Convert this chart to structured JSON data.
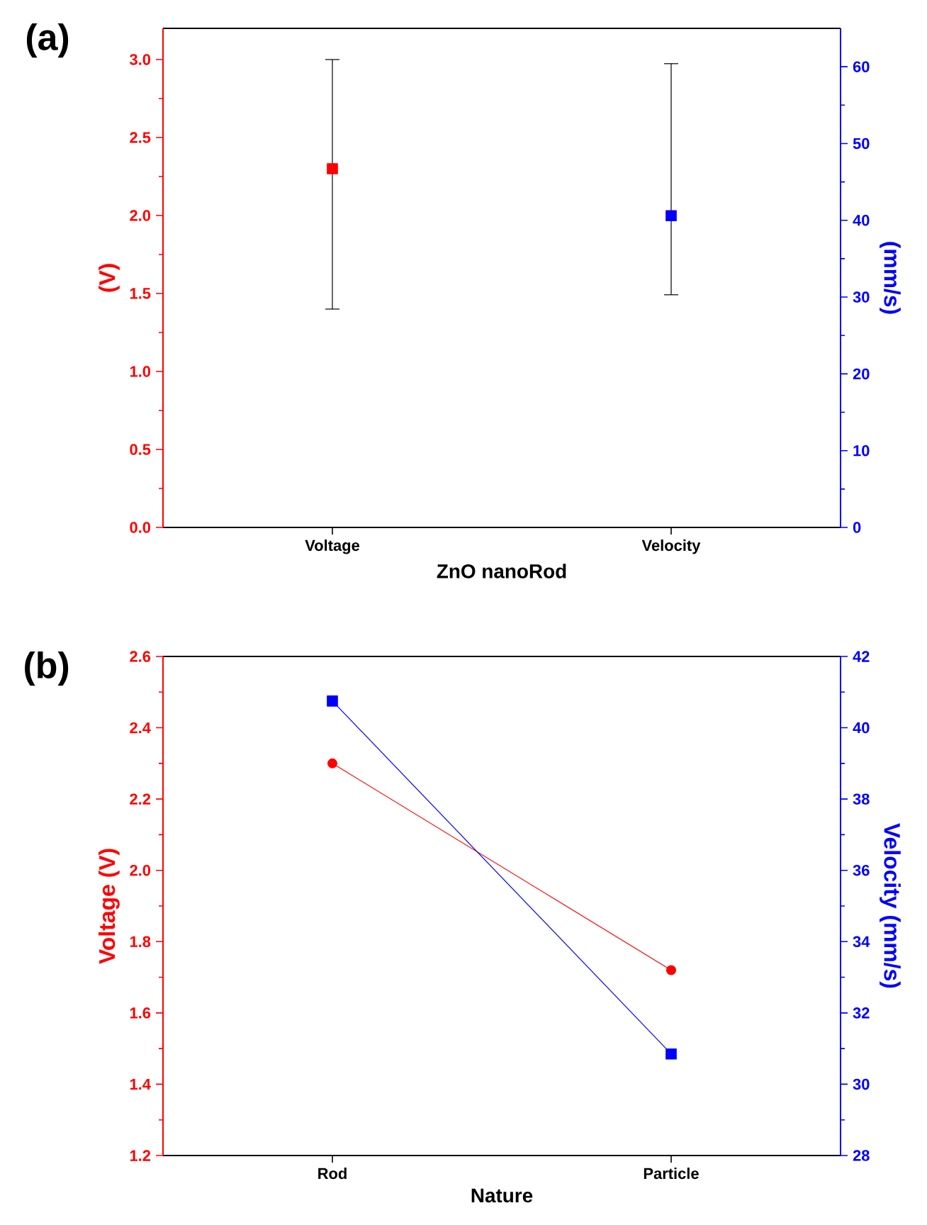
{
  "chart_data": [
    {
      "type": "scatter",
      "title": "(a)",
      "xlabel": "ZnO nanoRod",
      "ylabel": "(V)",
      "y2label": "(mm/s)",
      "categories": [
        "Voltage",
        "Velocity"
      ],
      "ylim": [
        0,
        3.2
      ],
      "yticks": [
        {
          "value": 0,
          "label": "0.0"
        },
        0.5,
        {
          "value": 1,
          "label": "1.0"
        },
        1.5,
        {
          "value": 2,
          "label": "2.0"
        },
        2.5,
        {
          "value": 3,
          "label": "3.0"
        }
      ],
      "y2lim": [
        0,
        65
      ],
      "y2ticks": [
        0,
        10,
        20,
        30,
        40,
        50,
        60
      ],
      "marker": "square",
      "grid": false,
      "series": [
        {
          "color": "#ff0000",
          "values": [
            2.3,
            null
          ],
          "errors": [
            [
              1.4,
              3.0
            ],
            null
          ]
        },
        {
          "color": "#0000ff",
          "axis": "y2",
          "values": [
            null,
            40.6
          ],
          "errors": [
            null,
            [
              30.3,
              60.4
            ]
          ]
        }
      ]
    },
    {
      "type": "line",
      "title": "(b)",
      "xlabel": "Nature",
      "ylabel": "Voltage (V)",
      "y2label": "Velocity (mm/s)",
      "categories": [
        "Rod",
        "Particle"
      ],
      "ylim": [
        1.2,
        2.6
      ],
      "yticks": [
        1.2,
        1.4,
        1.6,
        1.8,
        {
          "value": 2,
          "label": "2.0"
        },
        2.2,
        2.4,
        2.6
      ],
      "y2lim": [
        28,
        42
      ],
      "y2ticks": [
        28,
        30,
        32,
        34,
        36,
        38,
        40,
        42
      ],
      "grid": false,
      "series": [
        {
          "color": "#ff0000",
          "marker": "circle",
          "line_style": "solid",
          "values": [
            2.3,
            1.72
          ]
        },
        {
          "color": "#0000ff",
          "marker": "square",
          "line_style": "solid",
          "axis": "y2",
          "values": [
            40.75,
            30.85
          ]
        }
      ]
    }
  ]
}
